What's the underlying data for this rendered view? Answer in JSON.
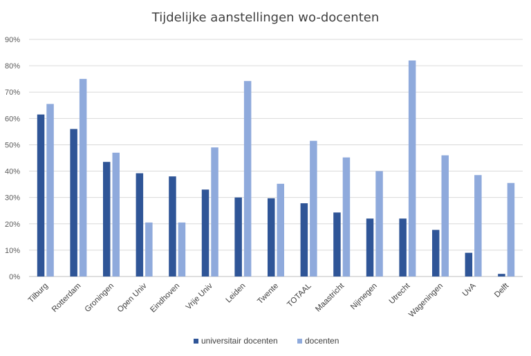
{
  "chart_data": {
    "type": "bar",
    "title": "Tijdelijke aanstellingen wo-docenten",
    "xlabel": "",
    "ylabel": "",
    "ylim": [
      0,
      90
    ],
    "yticks": [
      "0%",
      "10%",
      "20%",
      "30%",
      "40%",
      "50%",
      "60%",
      "70%",
      "80%",
      "90%"
    ],
    "grid": true,
    "legend_position": "bottom",
    "categories": [
      "Tilburg",
      "Rotterdam",
      "Groningen",
      "Open Univ",
      "Eindhoven",
      "Vrije Univ",
      "Leiden",
      "Twente",
      "TOTAAL",
      "Maastricht",
      "Nijmegen",
      "Utrecht",
      "Wageningen",
      "UvA",
      "Delft"
    ],
    "series": [
      {
        "name": "universitair docenten",
        "color": "#2f5597",
        "values": [
          61.5,
          56,
          43.5,
          39.2,
          38,
          33,
          30,
          29.7,
          27.8,
          24.3,
          22,
          22,
          17.7,
          9,
          1
        ]
      },
      {
        "name": "docenten",
        "color": "#8faadc",
        "values": [
          65.5,
          75,
          47,
          20.5,
          20.5,
          49,
          74.2,
          35.2,
          51.5,
          45.2,
          40,
          82,
          46,
          38.5,
          35.5
        ]
      }
    ]
  }
}
